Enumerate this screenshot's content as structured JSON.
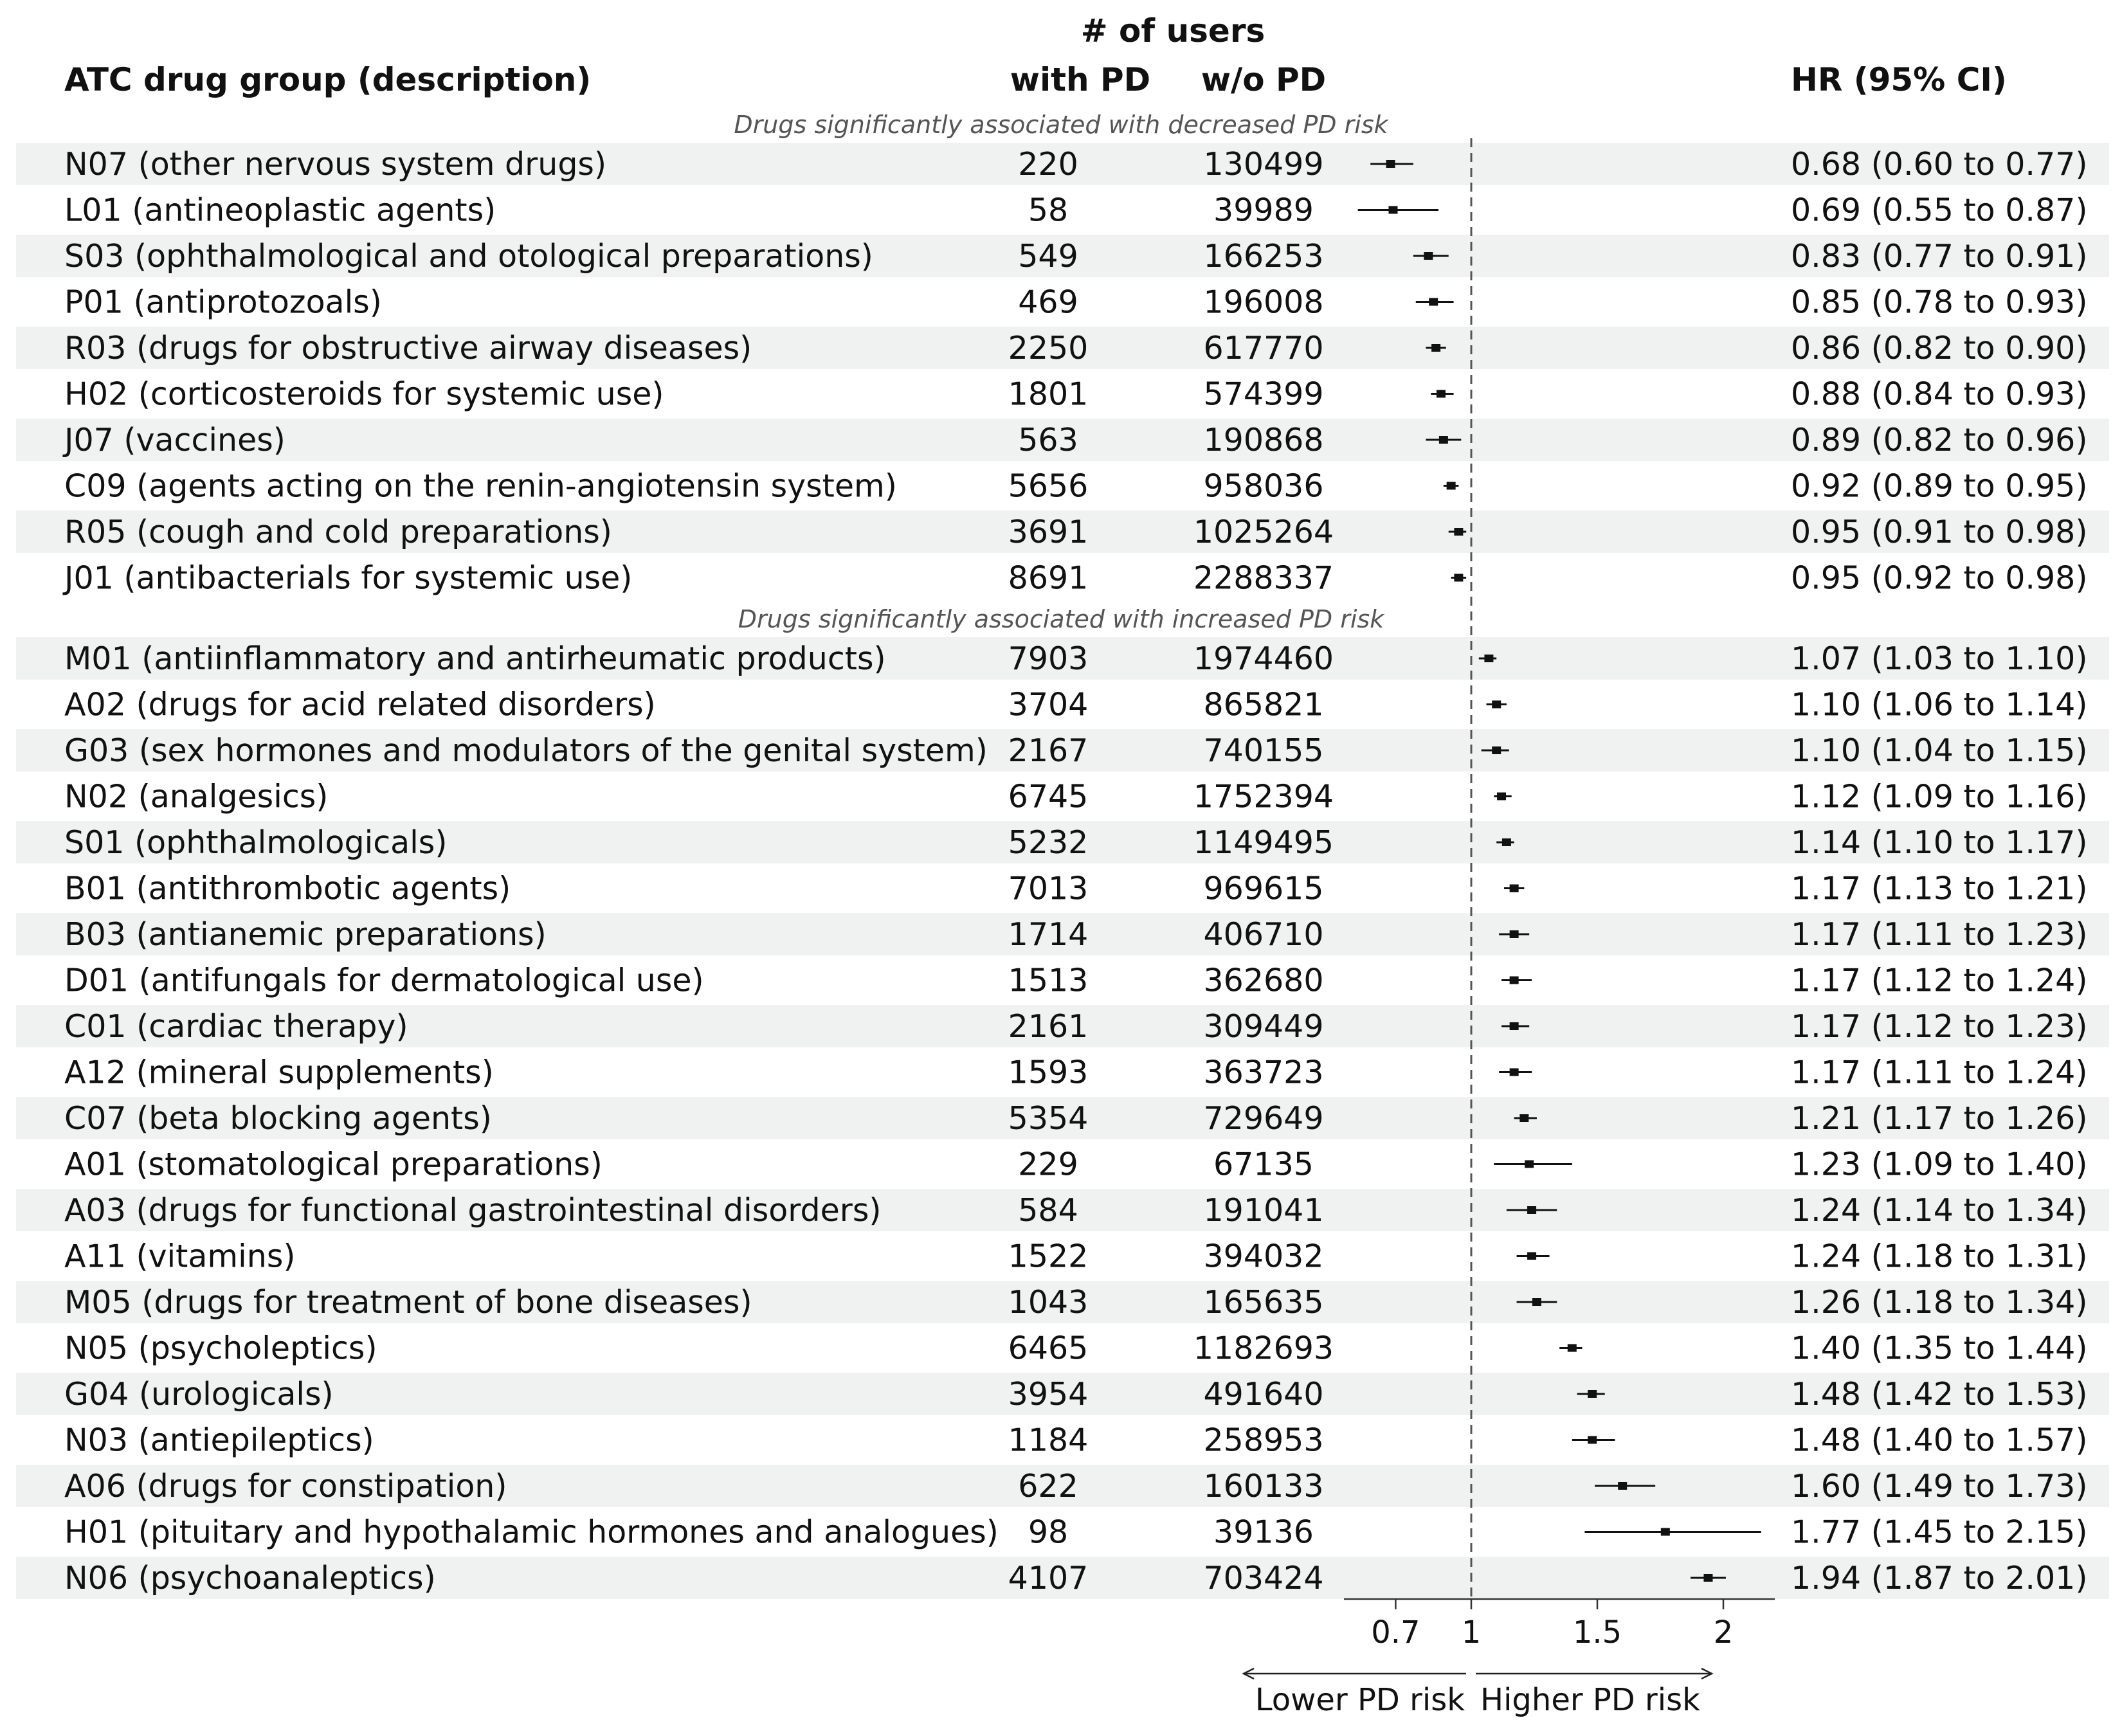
{
  "header": {
    "users_title": "# of users",
    "col_drug": "ATC drug group (description)",
    "col_with_pd": "with PD",
    "col_without_pd": "w/o PD",
    "col_hr": "HR (95% CI)"
  },
  "colors": {
    "stripe": "#eff2f1",
    "marker": "#111111",
    "reference_line": "#555555"
  },
  "chart_data": {
    "type": "forest",
    "x_axis": {
      "ticks": [
        0.7,
        1,
        1.5,
        2
      ],
      "tick_labels": [
        "0.7",
        "1",
        "1.5",
        "2"
      ],
      "range": [
        0.48,
        2.2
      ],
      "reference_value": 1
    },
    "direction_labels": {
      "left": "Lower PD risk",
      "right": "Higher PD risk"
    },
    "sections": [
      {
        "title": "Drugs significantly associated with decreased PD risk",
        "rows": [
          {
            "label": "N07 (other nervous system drugs)",
            "with_pd": "220",
            "without_pd": "130499",
            "hr_text": "0.68 (0.60 to 0.77)",
            "hr": 0.68,
            "lo": 0.6,
            "hi": 0.77
          },
          {
            "label": "L01 (antineoplastic agents)",
            "with_pd": "58",
            "without_pd": "39989",
            "hr_text": "0.69 (0.55 to 0.87)",
            "hr": 0.69,
            "lo": 0.55,
            "hi": 0.87
          },
          {
            "label": "S03 (ophthalmological and otological preparations)",
            "with_pd": "549",
            "without_pd": "166253",
            "hr_text": "0.83 (0.77 to 0.91)",
            "hr": 0.83,
            "lo": 0.77,
            "hi": 0.91
          },
          {
            "label": "P01 (antiprotozoals)",
            "with_pd": "469",
            "without_pd": "196008",
            "hr_text": "0.85 (0.78 to 0.93)",
            "hr": 0.85,
            "lo": 0.78,
            "hi": 0.93
          },
          {
            "label": "R03 (drugs for obstructive airway diseases)",
            "with_pd": "2250",
            "without_pd": "617770",
            "hr_text": "0.86 (0.82 to 0.90)",
            "hr": 0.86,
            "lo": 0.82,
            "hi": 0.9
          },
          {
            "label": "H02 (corticosteroids for systemic use)",
            "with_pd": "1801",
            "without_pd": "574399",
            "hr_text": "0.88 (0.84 to 0.93)",
            "hr": 0.88,
            "lo": 0.84,
            "hi": 0.93
          },
          {
            "label": "J07 (vaccines)",
            "with_pd": "563",
            "without_pd": "190868",
            "hr_text": "0.89 (0.82 to 0.96)",
            "hr": 0.89,
            "lo": 0.82,
            "hi": 0.96
          },
          {
            "label": "C09 (agents acting on the renin-angiotensin system)",
            "with_pd": "5656",
            "without_pd": "958036",
            "hr_text": "0.92 (0.89 to 0.95)",
            "hr": 0.92,
            "lo": 0.89,
            "hi": 0.95
          },
          {
            "label": "R05 (cough and cold preparations)",
            "with_pd": "3691",
            "without_pd": "1025264",
            "hr_text": "0.95 (0.91 to 0.98)",
            "hr": 0.95,
            "lo": 0.91,
            "hi": 0.98
          },
          {
            "label": "J01 (antibacterials for systemic use)",
            "with_pd": "8691",
            "without_pd": "2288337",
            "hr_text": "0.95 (0.92 to 0.98)",
            "hr": 0.95,
            "lo": 0.92,
            "hi": 0.98
          }
        ]
      },
      {
        "title": "Drugs significantly associated with increased PD risk",
        "rows": [
          {
            "label": "M01 (antiinflammatory and antirheumatic products)",
            "with_pd": "7903",
            "without_pd": "1974460",
            "hr_text": "1.07 (1.03 to 1.10)",
            "hr": 1.07,
            "lo": 1.03,
            "hi": 1.1
          },
          {
            "label": "A02 (drugs for acid related disorders)",
            "with_pd": "3704",
            "without_pd": "865821",
            "hr_text": "1.10 (1.06 to 1.14)",
            "hr": 1.1,
            "lo": 1.06,
            "hi": 1.14
          },
          {
            "label": "G03 (sex hormones and modulators of the genital system)",
            "with_pd": "2167",
            "without_pd": "740155",
            "hr_text": "1.10 (1.04 to 1.15)",
            "hr": 1.1,
            "lo": 1.04,
            "hi": 1.15
          },
          {
            "label": "N02 (analgesics)",
            "with_pd": "6745",
            "without_pd": "1752394",
            "hr_text": "1.12 (1.09 to 1.16)",
            "hr": 1.12,
            "lo": 1.09,
            "hi": 1.16
          },
          {
            "label": "S01 (ophthalmologicals)",
            "with_pd": "5232",
            "without_pd": "1149495",
            "hr_text": "1.14 (1.10 to 1.17)",
            "hr": 1.14,
            "lo": 1.1,
            "hi": 1.17
          },
          {
            "label": "B01 (antithrombotic agents)",
            "with_pd": "7013",
            "without_pd": "969615",
            "hr_text": "1.17 (1.13 to 1.21)",
            "hr": 1.17,
            "lo": 1.13,
            "hi": 1.21
          },
          {
            "label": "B03 (antianemic preparations)",
            "with_pd": "1714",
            "without_pd": "406710",
            "hr_text": "1.17 (1.11 to 1.23)",
            "hr": 1.17,
            "lo": 1.11,
            "hi": 1.23
          },
          {
            "label": "D01 (antifungals for dermatological use)",
            "with_pd": "1513",
            "without_pd": "362680",
            "hr_text": "1.17 (1.12 to 1.24)",
            "hr": 1.17,
            "lo": 1.12,
            "hi": 1.24
          },
          {
            "label": "C01 (cardiac therapy)",
            "with_pd": "2161",
            "without_pd": "309449",
            "hr_text": "1.17 (1.12 to 1.23)",
            "hr": 1.17,
            "lo": 1.12,
            "hi": 1.23
          },
          {
            "label": "A12 (mineral supplements)",
            "with_pd": "1593",
            "without_pd": "363723",
            "hr_text": "1.17 (1.11 to 1.24)",
            "hr": 1.17,
            "lo": 1.11,
            "hi": 1.24
          },
          {
            "label": "C07 (beta blocking agents)",
            "with_pd": "5354",
            "without_pd": "729649",
            "hr_text": "1.21 (1.17 to 1.26)",
            "hr": 1.21,
            "lo": 1.17,
            "hi": 1.26
          },
          {
            "label": "A01 (stomatological preparations)",
            "with_pd": "229",
            "without_pd": "67135",
            "hr_text": "1.23 (1.09 to 1.40)",
            "hr": 1.23,
            "lo": 1.09,
            "hi": 1.4
          },
          {
            "label": "A03 (drugs for functional gastrointestinal disorders)",
            "with_pd": "584",
            "without_pd": "191041",
            "hr_text": "1.24 (1.14 to 1.34)",
            "hr": 1.24,
            "lo": 1.14,
            "hi": 1.34
          },
          {
            "label": "A11 (vitamins)",
            "with_pd": "1522",
            "without_pd": "394032",
            "hr_text": "1.24 (1.18 to 1.31)",
            "hr": 1.24,
            "lo": 1.18,
            "hi": 1.31
          },
          {
            "label": "M05 (drugs for treatment of bone diseases)",
            "with_pd": "1043",
            "without_pd": "165635",
            "hr_text": "1.26 (1.18 to 1.34)",
            "hr": 1.26,
            "lo": 1.18,
            "hi": 1.34
          },
          {
            "label": "N05 (psycholeptics)",
            "with_pd": "6465",
            "without_pd": "1182693",
            "hr_text": "1.40 (1.35 to 1.44)",
            "hr": 1.4,
            "lo": 1.35,
            "hi": 1.44
          },
          {
            "label": "G04 (urologicals)",
            "with_pd": "3954",
            "without_pd": "491640",
            "hr_text": "1.48 (1.42 to 1.53)",
            "hr": 1.48,
            "lo": 1.42,
            "hi": 1.53
          },
          {
            "label": "N03 (antiepileptics)",
            "with_pd": "1184",
            "without_pd": "258953",
            "hr_text": "1.48 (1.40 to 1.57)",
            "hr": 1.48,
            "lo": 1.4,
            "hi": 1.57
          },
          {
            "label": "A06 (drugs for constipation)",
            "with_pd": "622",
            "without_pd": "160133",
            "hr_text": "1.60 (1.49 to 1.73)",
            "hr": 1.6,
            "lo": 1.49,
            "hi": 1.73
          },
          {
            "label": "H01 (pituitary and hypothalamic hormones and analogues)",
            "with_pd": "98",
            "without_pd": "39136",
            "hr_text": "1.77 (1.45 to 2.15)",
            "hr": 1.77,
            "lo": 1.45,
            "hi": 2.15
          },
          {
            "label": "N06 (psychoanaleptics)",
            "with_pd": "4107",
            "without_pd": "703424",
            "hr_text": "1.94 (1.87 to 2.01)",
            "hr": 1.94,
            "lo": 1.87,
            "hi": 2.01
          }
        ]
      }
    ]
  }
}
